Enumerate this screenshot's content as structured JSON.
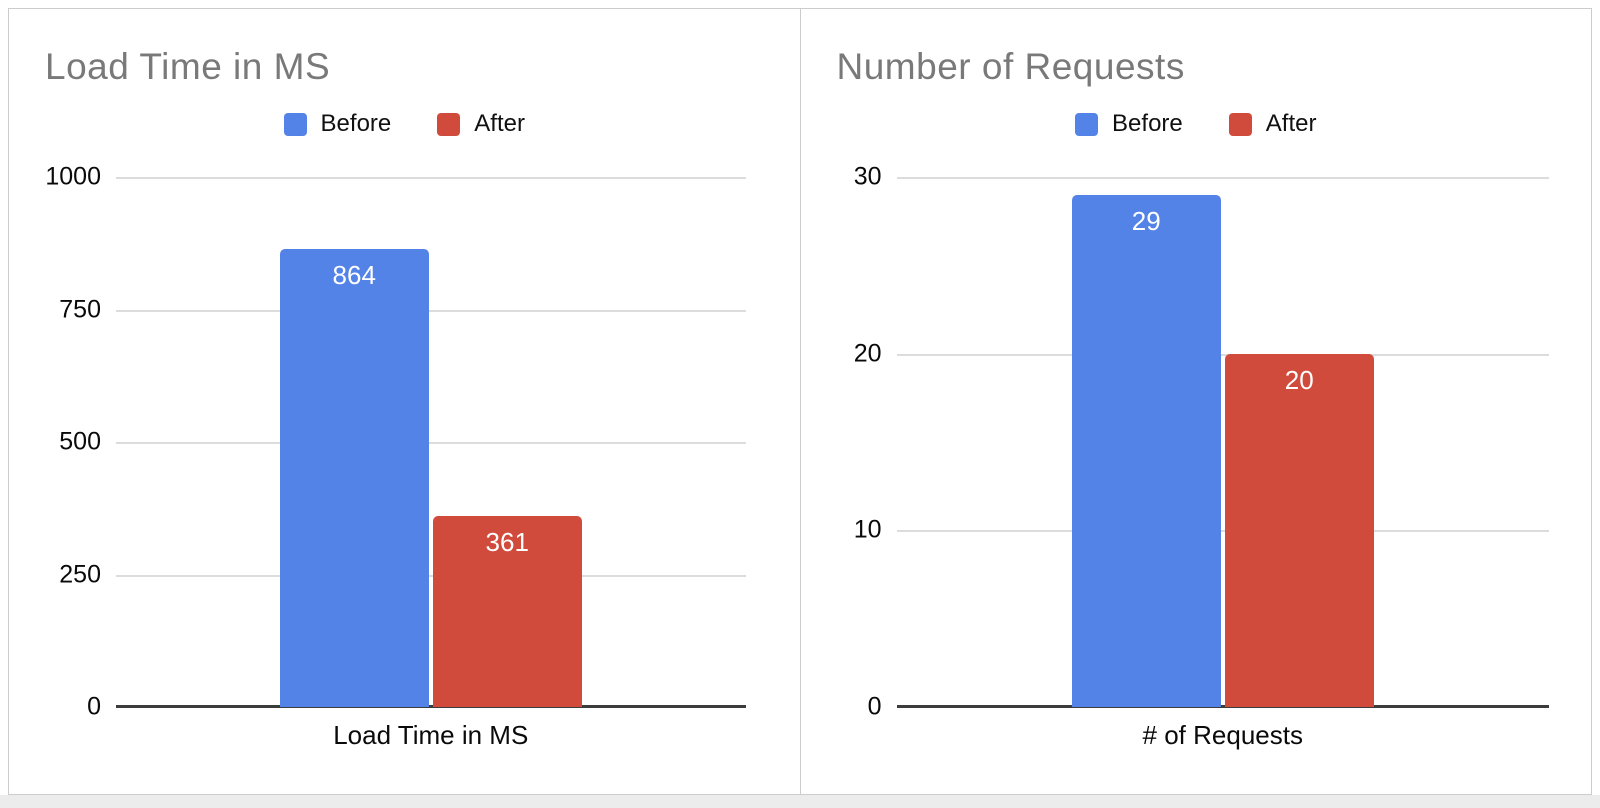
{
  "colors": {
    "before": "#5483e8",
    "after": "#d14b3c",
    "title_text": "#797979",
    "gridline": "#dcdcdc",
    "baseline": "#3c3c3c",
    "value_label": "#ffffff"
  },
  "legend": {
    "before_label": "Before",
    "after_label": "After"
  },
  "chart_data": [
    {
      "type": "bar",
      "title": "Load Time in MS",
      "categories": [
        "Load Time in MS"
      ],
      "series": [
        {
          "name": "Before",
          "color": "#5483e8",
          "values": [
            864
          ]
        },
        {
          "name": "After",
          "color": "#d14b3c",
          "values": [
            361
          ]
        }
      ],
      "xlabel": "Load Time in MS",
      "ylabel": "",
      "ylim": [
        0,
        1000
      ],
      "yticks": [
        0,
        250,
        500,
        750,
        1000
      ],
      "grid": true,
      "legend_position": "top",
      "value_labels": [
        "864",
        "361"
      ]
    },
    {
      "type": "bar",
      "title": "Number of Requests",
      "categories": [
        "# of Requests"
      ],
      "series": [
        {
          "name": "Before",
          "color": "#5483e8",
          "values": [
            29
          ]
        },
        {
          "name": "After",
          "color": "#d14b3c",
          "values": [
            20
          ]
        }
      ],
      "xlabel": "# of Requests",
      "ylabel": "",
      "ylim": [
        0,
        30
      ],
      "yticks": [
        0,
        10,
        20,
        30
      ],
      "grid": true,
      "legend_position": "top",
      "value_labels": [
        "29",
        "20"
      ]
    }
  ]
}
